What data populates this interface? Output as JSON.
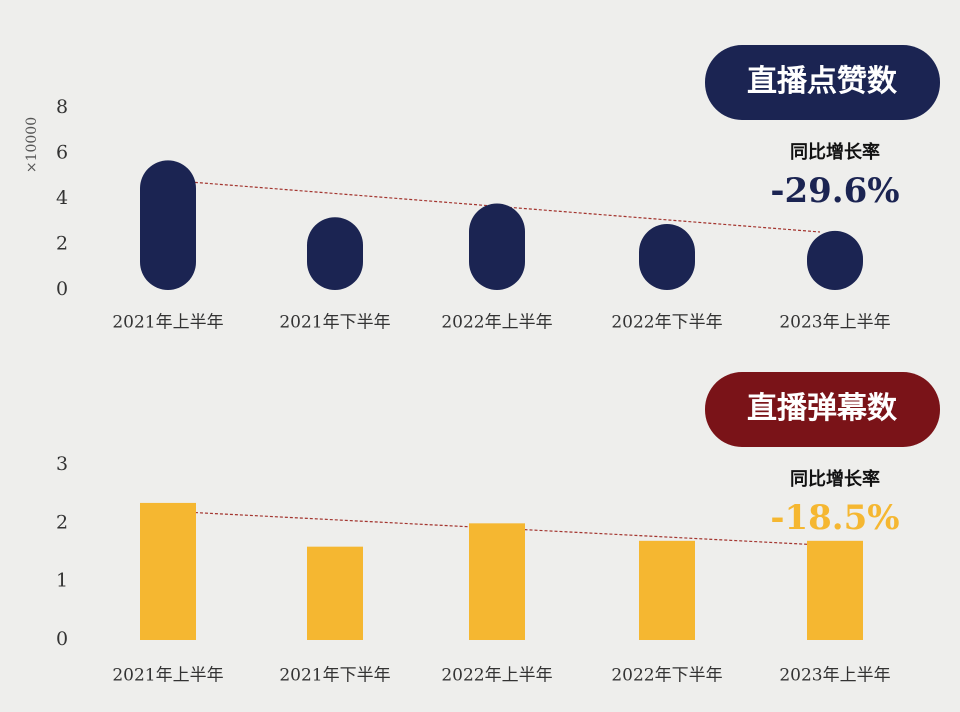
{
  "chart_data": [
    {
      "type": "bar",
      "badge": "直播点赞数",
      "badge_color": "#1b2452",
      "growth_label": "同比增长率",
      "growth_value": "-29.6%",
      "growth_color": "#1b2452",
      "y_label": "×10000",
      "categories": [
        "2021年上半年",
        "2021年下半年",
        "2022年上半年",
        "2022年下半年",
        "2023年上半年"
      ],
      "values": [
        5.7,
        3.2,
        3.8,
        2.9,
        2.6
      ],
      "color": "#1b2452",
      "bar_style": "rounded",
      "ylim": [
        0,
        8
      ],
      "yticks": [
        0,
        2,
        4,
        6,
        8
      ]
    },
    {
      "type": "bar",
      "badge": "直播弹幕数",
      "badge_color": "#7a1318",
      "growth_label": "同比增长率",
      "growth_value": "-18.5%",
      "growth_color": "#f5b731",
      "categories": [
        "2021年上半年",
        "2021年下半年",
        "2022年上半年",
        "2022年下半年",
        "2023年上半年"
      ],
      "values": [
        2.35,
        1.6,
        2.0,
        1.7,
        1.7
      ],
      "color": "#f5b731",
      "bar_style": "square",
      "ylim": [
        0,
        3
      ],
      "yticks": [
        0,
        1,
        2,
        3
      ]
    }
  ]
}
